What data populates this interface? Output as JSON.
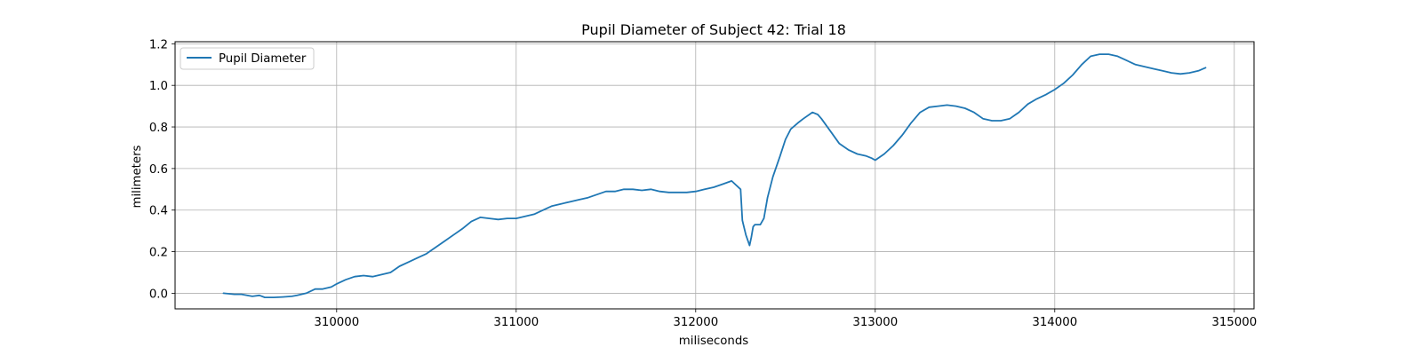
{
  "chart_data": {
    "type": "line",
    "title": "Pupil Diameter of Subject 42: Trial 18",
    "xlabel": "miliseconds",
    "ylabel": "milimeters",
    "xlim": [
      309100,
      315110
    ],
    "ylim": [
      -0.075,
      1.21
    ],
    "xticks": [
      310000,
      311000,
      312000,
      313000,
      314000,
      315000
    ],
    "yticks": [
      0.0,
      0.2,
      0.4,
      0.6,
      0.8,
      1.0,
      1.2
    ],
    "xtick_labels": [
      "310000",
      "311000",
      "312000",
      "313000",
      "314000",
      "315000"
    ],
    "ytick_labels": [
      "0.0",
      "0.2",
      "0.4",
      "0.6",
      "0.8",
      "1.0",
      "1.2"
    ],
    "grid": true,
    "legend": {
      "position": "upper left",
      "entries": [
        "Pupil Diameter"
      ]
    },
    "series": [
      {
        "name": "Pupil Diameter",
        "color": "#1f77b4",
        "x": [
          309370,
          309430,
          309470,
          309530,
          309570,
          309600,
          309650,
          309700,
          309750,
          309780,
          309830,
          309880,
          309920,
          309970,
          310000,
          310050,
          310100,
          310150,
          310200,
          310250,
          310300,
          310350,
          310400,
          310450,
          310500,
          310550,
          310600,
          310650,
          310700,
          310750,
          310800,
          310850,
          310900,
          310950,
          311000,
          311050,
          311100,
          311150,
          311200,
          311250,
          311300,
          311350,
          311400,
          311450,
          311500,
          311550,
          311600,
          311650,
          311700,
          311750,
          311800,
          311850,
          311900,
          311950,
          312000,
          312050,
          312100,
          312150,
          312200,
          312250,
          312260,
          312280,
          312300,
          312310,
          312320,
          312330,
          312360,
          312380,
          312400,
          312430,
          312470,
          312500,
          312530,
          312570,
          312600,
          312650,
          312680,
          312700,
          312750,
          312800,
          312850,
          312900,
          312950,
          312980,
          313000,
          313050,
          313100,
          313150,
          313200,
          313250,
          313300,
          313350,
          313400,
          313450,
          313500,
          313550,
          313600,
          313650,
          313700,
          313750,
          313800,
          313850,
          313900,
          313950,
          314000,
          314050,
          314100,
          314150,
          314200,
          314250,
          314300,
          314350,
          314400,
          314450,
          314500,
          314550,
          314600,
          314650,
          314700,
          314750,
          314800,
          314840
        ],
        "y": [
          0.0,
          -0.005,
          -0.005,
          -0.015,
          -0.01,
          -0.02,
          -0.02,
          -0.018,
          -0.015,
          -0.01,
          0.0,
          0.02,
          0.02,
          0.03,
          0.045,
          0.065,
          0.08,
          0.085,
          0.08,
          0.09,
          0.1,
          0.13,
          0.15,
          0.17,
          0.19,
          0.22,
          0.25,
          0.28,
          0.31,
          0.345,
          0.365,
          0.36,
          0.355,
          0.36,
          0.36,
          0.37,
          0.38,
          0.4,
          0.42,
          0.43,
          0.44,
          0.45,
          0.46,
          0.475,
          0.49,
          0.49,
          0.5,
          0.5,
          0.495,
          0.5,
          0.49,
          0.485,
          0.485,
          0.485,
          0.49,
          0.5,
          0.51,
          0.525,
          0.54,
          0.5,
          0.35,
          0.28,
          0.23,
          0.27,
          0.32,
          0.33,
          0.33,
          0.36,
          0.46,
          0.56,
          0.66,
          0.74,
          0.79,
          0.82,
          0.84,
          0.87,
          0.86,
          0.84,
          0.78,
          0.72,
          0.69,
          0.67,
          0.66,
          0.65,
          0.64,
          0.67,
          0.71,
          0.76,
          0.82,
          0.87,
          0.895,
          0.9,
          0.905,
          0.9,
          0.89,
          0.87,
          0.84,
          0.83,
          0.83,
          0.84,
          0.87,
          0.91,
          0.935,
          0.955,
          0.98,
          1.01,
          1.05,
          1.1,
          1.14,
          1.15,
          1.15,
          1.14,
          1.12,
          1.1,
          1.09,
          1.08,
          1.07,
          1.06,
          1.055,
          1.06,
          1.07,
          1.085
        ]
      }
    ]
  }
}
